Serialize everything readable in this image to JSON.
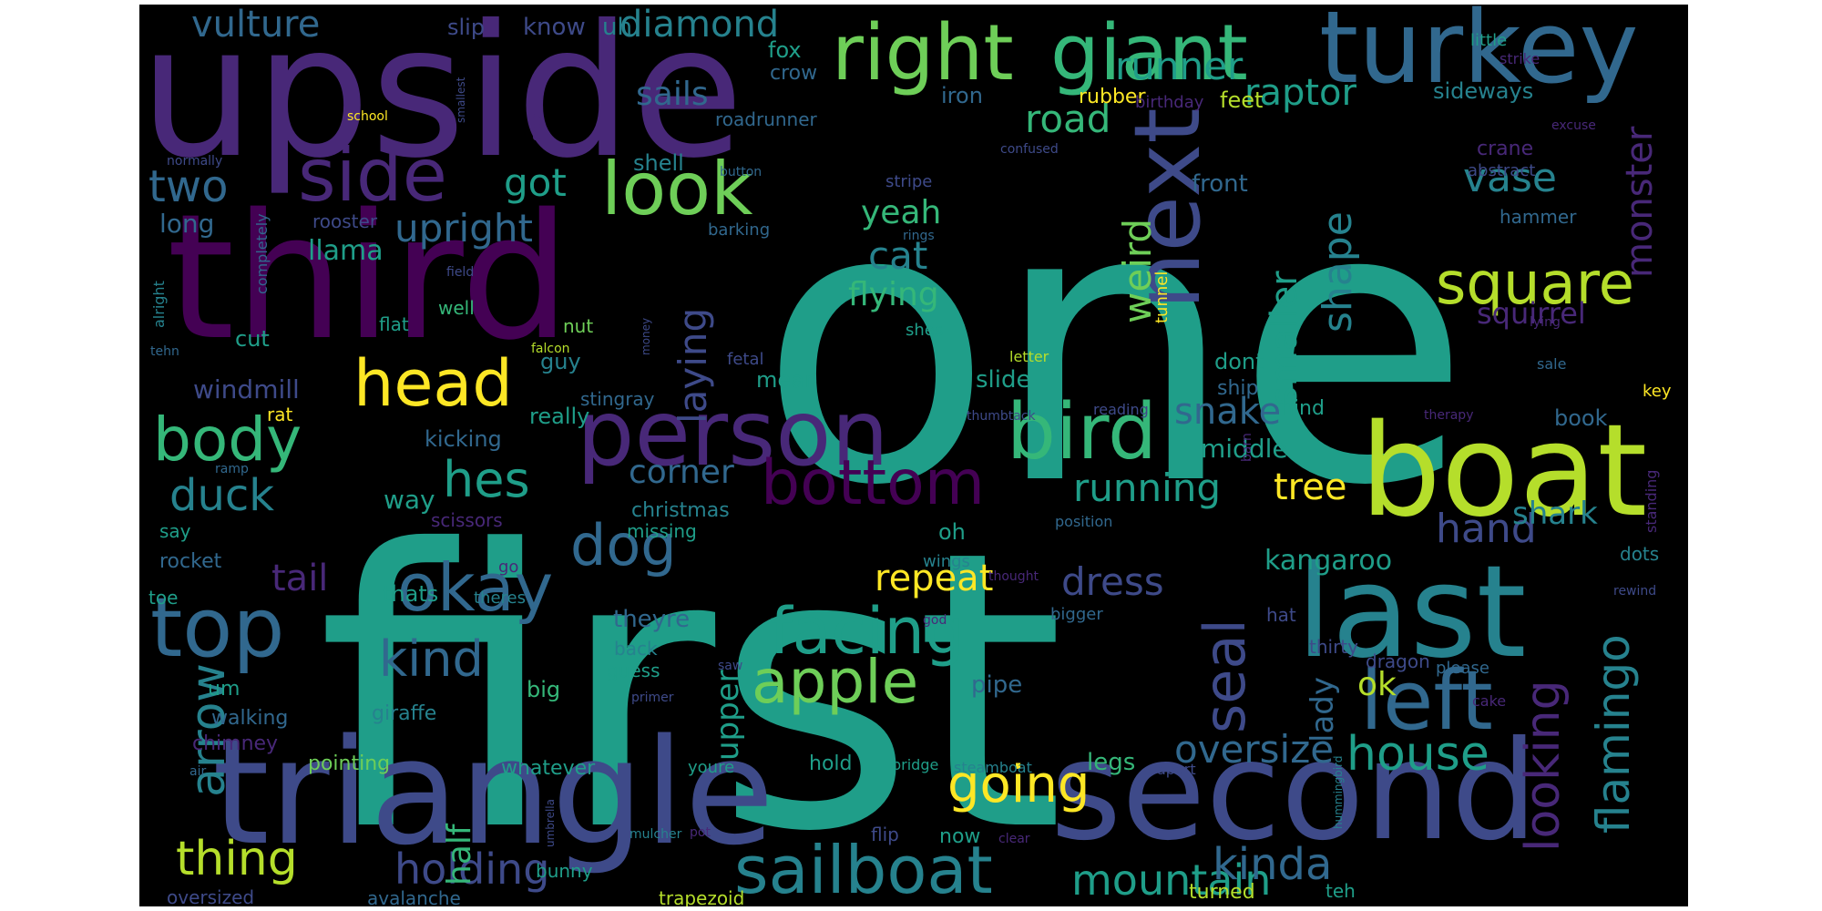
{
  "wordcloud": {
    "background": "#000000",
    "palette": {
      "v1": "#440154",
      "v2": "#482878",
      "v3": "#3e4a89",
      "v4": "#31688e",
      "v5": "#26828e",
      "v6": "#1f9e89",
      "v7": "#35b779",
      "v8": "#6ece58",
      "v9": "#b5de2b",
      "v10": "#fde725"
    },
    "words": [
      {
        "text": "one",
        "color": "v6"
      },
      {
        "text": "first",
        "color": "v6"
      },
      {
        "text": "upside",
        "color": "v2"
      },
      {
        "text": "third",
        "color": "v1"
      },
      {
        "text": "triangle",
        "color": "v3"
      },
      {
        "text": "second",
        "color": "v3"
      },
      {
        "text": "boat",
        "color": "v9"
      },
      {
        "text": "last",
        "color": "v5"
      },
      {
        "text": "turkey",
        "color": "v4"
      },
      {
        "text": "right",
        "color": "v8"
      },
      {
        "text": "giant",
        "color": "v7"
      },
      {
        "text": "person",
        "color": "v2"
      },
      {
        "text": "look",
        "color": "v8"
      },
      {
        "text": "side",
        "color": "v2"
      },
      {
        "text": "top",
        "color": "v4"
      },
      {
        "text": "bird",
        "color": "v7"
      },
      {
        "text": "bottom",
        "color": "v1"
      },
      {
        "text": "next",
        "color": "v3"
      },
      {
        "text": "left",
        "color": "v4"
      },
      {
        "text": "head",
        "color": "v10"
      },
      {
        "text": "body",
        "color": "v7"
      },
      {
        "text": "okay",
        "color": "v4"
      },
      {
        "text": "facing",
        "color": "v6"
      },
      {
        "text": "apple",
        "color": "v8"
      },
      {
        "text": "sailboat",
        "color": "v5"
      },
      {
        "text": "mountain",
        "color": "v6"
      },
      {
        "text": "dog",
        "color": "v4"
      },
      {
        "text": "square",
        "color": "v9"
      },
      {
        "text": "seal",
        "color": "v3"
      },
      {
        "text": "flamingo",
        "color": "v5"
      },
      {
        "text": "looking",
        "color": "v2"
      },
      {
        "text": "house",
        "color": "v6"
      },
      {
        "text": "going",
        "color": "v10"
      },
      {
        "text": "oversize",
        "color": "v4"
      },
      {
        "text": "kinda",
        "color": "v4"
      },
      {
        "text": "arrow",
        "color": "v5"
      },
      {
        "text": "thing",
        "color": "v9"
      },
      {
        "text": "holding",
        "color": "v3"
      },
      {
        "text": "kind",
        "color": "v4"
      },
      {
        "text": "hes",
        "color": "v6"
      },
      {
        "text": "two",
        "color": "v4"
      },
      {
        "text": "duck",
        "color": "v5"
      },
      {
        "text": "running",
        "color": "v6"
      },
      {
        "text": "road",
        "color": "v7"
      },
      {
        "text": "runner",
        "color": "v6"
      },
      {
        "text": "raptor",
        "color": "v6"
      },
      {
        "text": "vulture",
        "color": "v4"
      },
      {
        "text": "diamond",
        "color": "v5"
      },
      {
        "text": "sails",
        "color": "v4"
      },
      {
        "text": "got",
        "color": "v6"
      },
      {
        "text": "upright",
        "color": "v4"
      },
      {
        "text": "cat",
        "color": "v5"
      },
      {
        "text": "yeah",
        "color": "v7"
      },
      {
        "text": "flying",
        "color": "v7"
      },
      {
        "text": "weird",
        "color": "v8"
      },
      {
        "text": "laying",
        "color": "v3"
      },
      {
        "text": "smaller",
        "color": "v6"
      },
      {
        "text": "shape",
        "color": "v5"
      },
      {
        "text": "vase",
        "color": "v5"
      },
      {
        "text": "monster",
        "color": "v2"
      },
      {
        "text": "squirrel",
        "color": "v2"
      },
      {
        "text": "snake",
        "color": "v4"
      },
      {
        "text": "hand",
        "color": "v3"
      },
      {
        "text": "tree",
        "color": "v10"
      },
      {
        "text": "shark",
        "color": "v5"
      },
      {
        "text": "dress",
        "color": "v3"
      },
      {
        "text": "repeat",
        "color": "v10"
      },
      {
        "text": "tail",
        "color": "v2"
      },
      {
        "text": "corner",
        "color": "v4"
      },
      {
        "text": "lady",
        "color": "v4"
      },
      {
        "text": "ok",
        "color": "v9"
      },
      {
        "text": "upper",
        "color": "v6"
      },
      {
        "text": "half",
        "color": "v7"
      },
      {
        "text": "kangaroo",
        "color": "v6"
      },
      {
        "text": "middle",
        "color": "v6"
      },
      {
        "text": "llama",
        "color": "v6"
      },
      {
        "text": "long",
        "color": "v4"
      },
      {
        "text": "windmill",
        "color": "v3"
      },
      {
        "text": "know",
        "color": "v3"
      },
      {
        "text": "uh",
        "color": "v5"
      },
      {
        "text": "slip",
        "color": "v3"
      },
      {
        "text": "fox",
        "color": "v6"
      },
      {
        "text": "crow",
        "color": "v4"
      },
      {
        "text": "iron",
        "color": "v4"
      },
      {
        "text": "roadrunner",
        "color": "v4"
      },
      {
        "text": "rubber",
        "color": "v10"
      },
      {
        "text": "birthday",
        "color": "v2"
      },
      {
        "text": "feet",
        "color": "v9"
      },
      {
        "text": "sideways",
        "color": "v5"
      },
      {
        "text": "little",
        "color": "v6"
      },
      {
        "text": "strike",
        "color": "v2"
      },
      {
        "text": "crane",
        "color": "v2"
      },
      {
        "text": "abstract",
        "color": "v3"
      },
      {
        "text": "excuse",
        "color": "v2"
      },
      {
        "text": "school",
        "color": "v10"
      },
      {
        "text": "smallest",
        "color": "v3"
      },
      {
        "text": "crab",
        "color": "v2"
      },
      {
        "text": "confused",
        "color": "v3"
      },
      {
        "text": "normally",
        "color": "v3"
      },
      {
        "text": "shell",
        "color": "v5"
      },
      {
        "text": "button",
        "color": "v4"
      },
      {
        "text": "stripe",
        "color": "v3"
      },
      {
        "text": "front",
        "color": "v4"
      },
      {
        "text": "hammer",
        "color": "v4"
      },
      {
        "text": "rooster",
        "color": "v3"
      },
      {
        "text": "barking",
        "color": "v4"
      },
      {
        "text": "rings",
        "color": "v4"
      },
      {
        "text": "completely",
        "color": "v4"
      },
      {
        "text": "alright",
        "color": "v5"
      },
      {
        "text": "field",
        "color": "v3"
      },
      {
        "text": "well",
        "color": "v7"
      },
      {
        "text": "flat",
        "color": "v6"
      },
      {
        "text": "nut",
        "color": "v8"
      },
      {
        "text": "falcon",
        "color": "v9"
      },
      {
        "text": "money",
        "color": "v3"
      },
      {
        "text": "shes",
        "color": "v6"
      },
      {
        "text": "tunnel",
        "color": "v10"
      },
      {
        "text": "lying",
        "color": "v2"
      },
      {
        "text": "tehn",
        "color": "v4"
      },
      {
        "text": "cut",
        "color": "v6"
      },
      {
        "text": "guy",
        "color": "v5"
      },
      {
        "text": "fetal",
        "color": "v3"
      },
      {
        "text": "mean",
        "color": "v6"
      },
      {
        "text": "stingray",
        "color": "v4"
      },
      {
        "text": "dont",
        "color": "v6"
      },
      {
        "text": "ship",
        "color": "v4"
      },
      {
        "text": "letter",
        "color": "v9"
      },
      {
        "text": "sale",
        "color": "v4"
      },
      {
        "text": "key",
        "color": "v10"
      },
      {
        "text": "rat",
        "color": "v10"
      },
      {
        "text": "really",
        "color": "v6"
      },
      {
        "text": "thumbtack",
        "color": "v3"
      },
      {
        "text": "reading",
        "color": "v3"
      },
      {
        "text": "hind",
        "color": "v6"
      },
      {
        "text": "therapy",
        "color": "v2"
      },
      {
        "text": "book",
        "color": "v4"
      },
      {
        "text": "kicking",
        "color": "v4"
      },
      {
        "text": "barn",
        "color": "v2"
      },
      {
        "text": "ramp",
        "color": "v4"
      },
      {
        "text": "way",
        "color": "v6"
      },
      {
        "text": "christmas",
        "color": "v5"
      },
      {
        "text": "scissors",
        "color": "v2"
      },
      {
        "text": "missing",
        "color": "v6"
      },
      {
        "text": "position",
        "color": "v4"
      },
      {
        "text": "standing",
        "color": "v2"
      },
      {
        "text": "say",
        "color": "v6"
      },
      {
        "text": "oh",
        "color": "v6"
      },
      {
        "text": "rocket",
        "color": "v4"
      },
      {
        "text": "wings",
        "color": "v5"
      },
      {
        "text": "go",
        "color": "v2"
      },
      {
        "text": "thought",
        "color": "v2"
      },
      {
        "text": "dots",
        "color": "v5"
      },
      {
        "text": "rewind",
        "color": "v3"
      },
      {
        "text": "toe",
        "color": "v6"
      },
      {
        "text": "thats",
        "color": "v6"
      },
      {
        "text": "theres",
        "color": "v5"
      },
      {
        "text": "theyre",
        "color": "v4"
      },
      {
        "text": "god",
        "color": "v2"
      },
      {
        "text": "bigger",
        "color": "v4"
      },
      {
        "text": "hat",
        "color": "v3"
      },
      {
        "text": "back",
        "color": "v5"
      },
      {
        "text": "saw",
        "color": "v3"
      },
      {
        "text": "guess",
        "color": "v6"
      },
      {
        "text": "thirty",
        "color": "v3"
      },
      {
        "text": "dragon",
        "color": "v3"
      },
      {
        "text": "please",
        "color": "v4"
      },
      {
        "text": "um",
        "color": "v6"
      },
      {
        "text": "big",
        "color": "v7"
      },
      {
        "text": "primer",
        "color": "v3"
      },
      {
        "text": "pipe",
        "color": "v4"
      },
      {
        "text": "cake",
        "color": "v2"
      },
      {
        "text": "walking",
        "color": "v4"
      },
      {
        "text": "giraffe",
        "color": "v5"
      },
      {
        "text": "chimney",
        "color": "v2"
      },
      {
        "text": "air",
        "color": "v4"
      },
      {
        "text": "pointing",
        "color": "v8"
      },
      {
        "text": "whatever",
        "color": "v6"
      },
      {
        "text": "youre",
        "color": "v6"
      },
      {
        "text": "hold",
        "color": "v6"
      },
      {
        "text": "bridge",
        "color": "v6"
      },
      {
        "text": "steamboat",
        "color": "v5"
      },
      {
        "text": "legs",
        "color": "v7"
      },
      {
        "text": "apart",
        "color": "v3"
      },
      {
        "text": "hummingbird",
        "color": "v5"
      },
      {
        "text": "umbrella",
        "color": "v3"
      },
      {
        "text": "mulcher",
        "color": "v5"
      },
      {
        "text": "pot",
        "color": "v2"
      },
      {
        "text": "flip",
        "color": "v3"
      },
      {
        "text": "now",
        "color": "v6"
      },
      {
        "text": "clear",
        "color": "v2"
      },
      {
        "text": "oversized",
        "color": "v3"
      },
      {
        "text": "avalanche",
        "color": "v4"
      },
      {
        "text": "bunny",
        "color": "v6"
      },
      {
        "text": "trapezoid",
        "color": "v9"
      },
      {
        "text": "turned",
        "color": "v9"
      },
      {
        "text": "teh",
        "color": "v6"
      },
      {
        "text": "slide",
        "color": "v6"
      }
    ]
  }
}
